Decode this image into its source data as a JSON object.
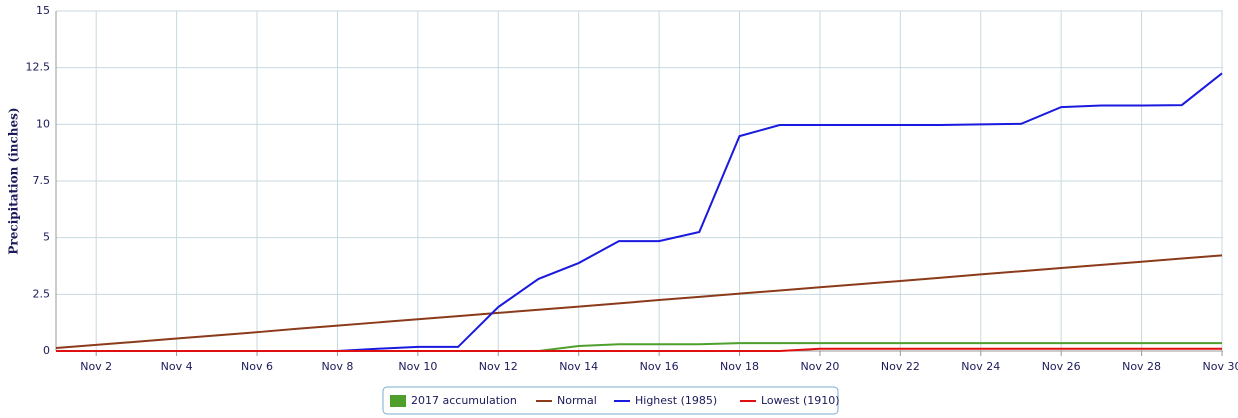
{
  "chart_data": {
    "type": "line",
    "y_label": "Precipitation (inches)",
    "categories": [
      null,
      "Nov 2",
      null,
      "Nov 4",
      null,
      "Nov 6",
      null,
      "Nov 8",
      null,
      "Nov 10",
      null,
      "Nov 12",
      null,
      "Nov 14",
      null,
      "Nov 16",
      null,
      "Nov 18",
      null,
      "Nov 20",
      null,
      "Nov 22",
      null,
      "Nov 24",
      null,
      "Nov 26",
      null,
      "Nov 28",
      null,
      "Nov 30"
    ],
    "series": [
      {
        "name": "2017 accumulation",
        "color": "#4e9f2c",
        "legend_marker": "square",
        "values": [
          0,
          0,
          0,
          0,
          0,
          0,
          0,
          0,
          0,
          0,
          0,
          0,
          0,
          0.22,
          0.3,
          0.3,
          0.3,
          0.35,
          0.35,
          0.35,
          0.35,
          0.35,
          0.35,
          0.35,
          0.35,
          0.35,
          0.35,
          0.35,
          0.35,
          0.35
        ]
      },
      {
        "name": "Normal",
        "color": "#8b3a1a",
        "values": [
          0.13,
          0.27,
          0.41,
          0.55,
          0.69,
          0.83,
          0.98,
          1.12,
          1.26,
          1.4,
          1.54,
          1.68,
          1.82,
          1.96,
          2.1,
          2.25,
          2.39,
          2.53,
          2.67,
          2.81,
          2.95,
          3.09,
          3.23,
          3.38,
          3.52,
          3.66,
          3.8,
          3.94,
          4.08,
          4.22
        ]
      },
      {
        "name": "Highest (1985)",
        "color": "#1a1adf",
        "values": [
          0,
          0,
          0,
          0,
          0,
          0,
          0,
          0,
          0.1,
          0.18,
          0.18,
          1.94,
          3.18,
          3.88,
          4.85,
          4.85,
          5.25,
          9.48,
          9.97,
          9.97,
          9.97,
          9.97,
          9.97,
          10.0,
          10.02,
          10.76,
          10.83,
          10.83,
          10.85,
          12.25
        ]
      },
      {
        "name": "Lowest (1910)",
        "color": "#e01010",
        "values": [
          0,
          0,
          0,
          0,
          0,
          0,
          0,
          0,
          0,
          0,
          0,
          0,
          0,
          0,
          0,
          0,
          0,
          0,
          0,
          0.1,
          0.1,
          0.1,
          0.1,
          0.1,
          0.1,
          0.1,
          0.1,
          0.1,
          0.1,
          0.1
        ]
      }
    ],
    "ylim": [
      0,
      15
    ],
    "yticks": [
      0,
      2.5,
      5,
      7.5,
      10,
      12.5,
      15
    ],
    "grid": true,
    "legend": "bottom"
  }
}
